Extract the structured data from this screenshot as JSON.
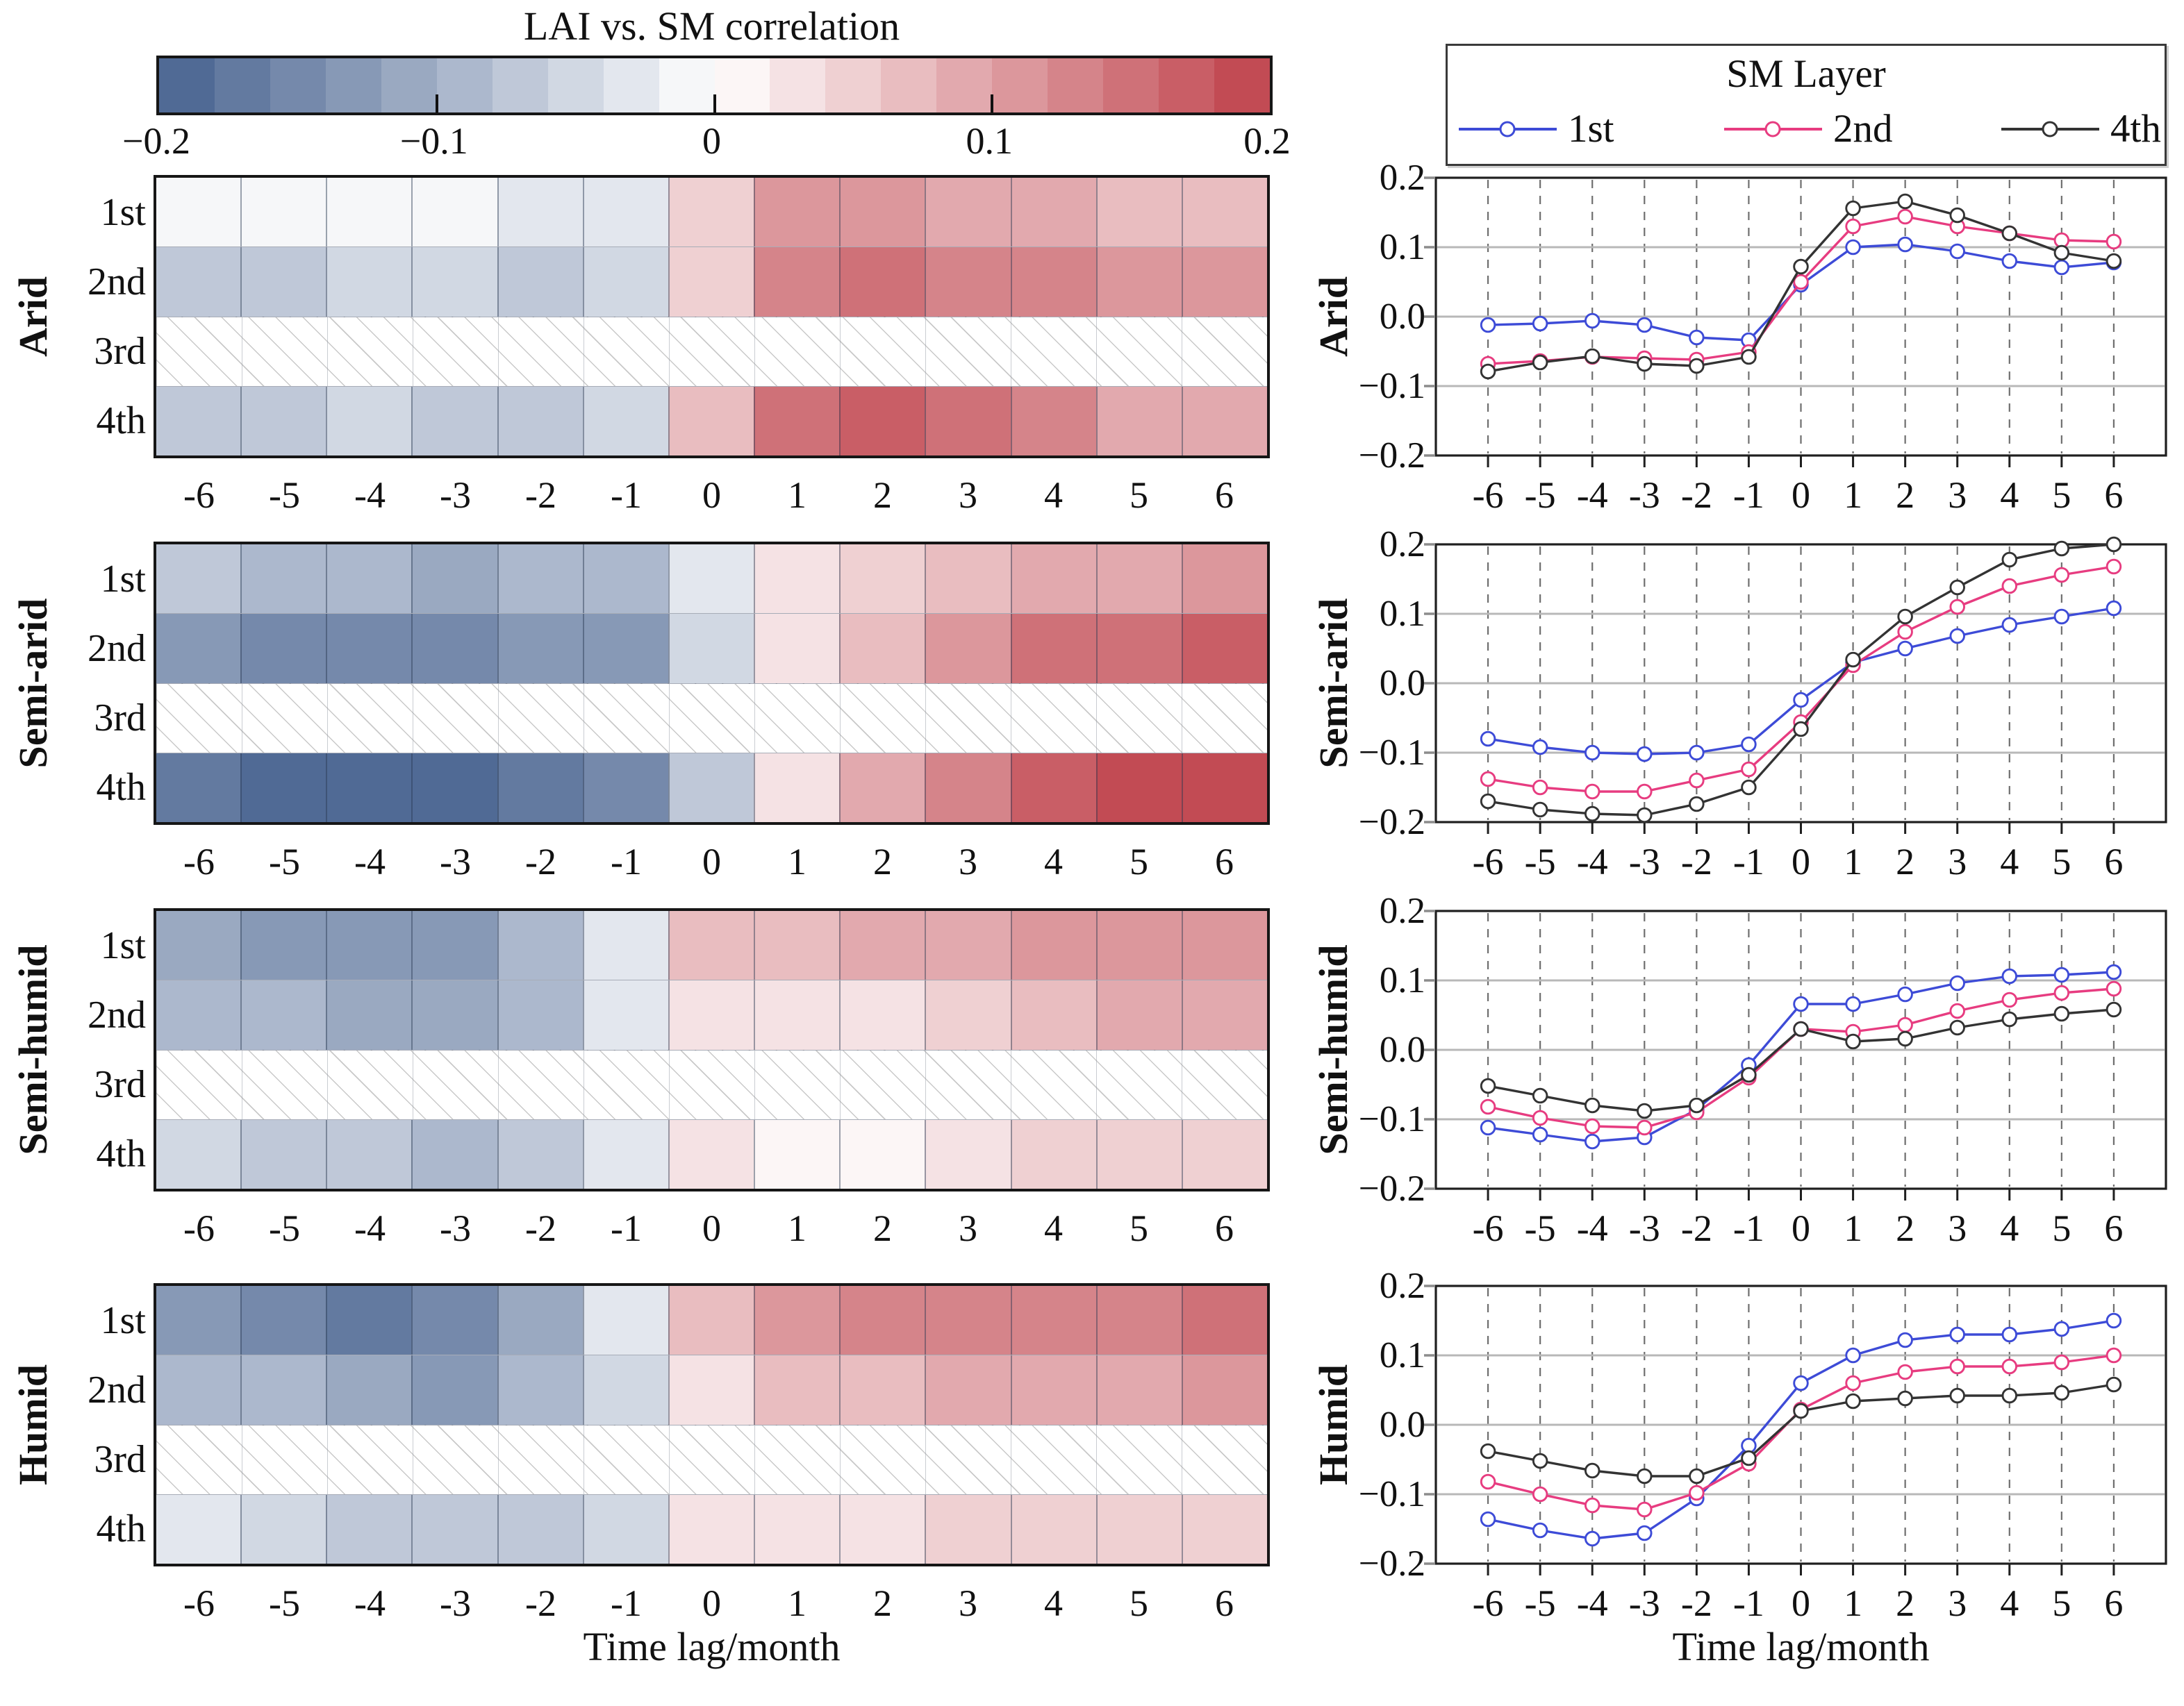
{
  "colorbar": {
    "title": "LAI vs. SM correlation",
    "tick_labels": [
      "−0.2",
      "−0.1",
      "0",
      "0.1",
      "0.2"
    ],
    "vmin": -0.2,
    "vmax": 0.2,
    "n_segments": 20,
    "color_negative_end": "#47628f",
    "color_zero": "#ffffff",
    "color_positive_end": "#bf414b"
  },
  "legend": {
    "title": "SM Layer",
    "entries": [
      {
        "label": "1st",
        "color": "#3d4bd7"
      },
      {
        "label": "2nd",
        "color": "#e73c80"
      },
      {
        "label": "4th",
        "color": "#333333"
      }
    ]
  },
  "axes": {
    "xlabel": "Time lag/month",
    "xtick_labels": [
      "-6",
      "-5",
      "-4",
      "-3",
      "-2",
      "-1",
      "0",
      "1",
      "2",
      "3",
      "4",
      "5",
      "6"
    ],
    "ytick_labels": [
      "0.2",
      "0.1",
      "0.0",
      "−0.1",
      "−0.2"
    ],
    "row_labels": [
      "1st",
      "2nd",
      "3rd",
      "4th"
    ],
    "no_data_note": "3rd soil-moisture layer shown as hatched (no data) in heatmaps"
  },
  "chart_data": [
    {
      "type": "heatmap",
      "region": "Arid",
      "x": [
        -6,
        -5,
        -4,
        -3,
        -2,
        -1,
        0,
        1,
        2,
        3,
        4,
        5,
        6
      ],
      "rows": [
        "1st",
        "2nd",
        "3rd",
        "4th"
      ],
      "vmin": -0.2,
      "vmax": 0.2,
      "values": {
        "1st": [
          -0.012,
          -0.01,
          -0.006,
          -0.012,
          -0.03,
          -0.034,
          0.046,
          0.1,
          0.104,
          0.094,
          0.08,
          0.071,
          0.078
        ],
        "2nd": [
          -0.068,
          -0.064,
          -0.058,
          -0.06,
          -0.062,
          -0.051,
          0.05,
          0.13,
          0.144,
          0.13,
          0.12,
          0.11,
          0.108
        ],
        "3rd": null,
        "4th": [
          -0.079,
          -0.066,
          -0.057,
          -0.068,
          -0.071,
          -0.058,
          0.072,
          0.156,
          0.166,
          0.146,
          0.12,
          0.092,
          0.08
        ]
      }
    },
    {
      "type": "heatmap",
      "region": "Semi-arid",
      "x": [
        -6,
        -5,
        -4,
        -3,
        -2,
        -1,
        0,
        1,
        2,
        3,
        4,
        5,
        6
      ],
      "rows": [
        "1st",
        "2nd",
        "3rd",
        "4th"
      ],
      "vmin": -0.2,
      "vmax": 0.2,
      "values": {
        "1st": [
          -0.08,
          -0.092,
          -0.1,
          -0.102,
          -0.1,
          -0.088,
          -0.024,
          0.03,
          0.05,
          0.068,
          0.084,
          0.096,
          0.108
        ],
        "2nd": [
          -0.138,
          -0.15,
          -0.156,
          -0.156,
          -0.14,
          -0.124,
          -0.056,
          0.026,
          0.074,
          0.11,
          0.14,
          0.156,
          0.168
        ],
        "3rd": null,
        "4th": [
          -0.17,
          -0.182,
          -0.188,
          -0.19,
          -0.174,
          -0.15,
          -0.066,
          0.034,
          0.096,
          0.138,
          0.178,
          0.194,
          0.2
        ]
      }
    },
    {
      "type": "heatmap",
      "region": "Semi-humid",
      "x": [
        -6,
        -5,
        -4,
        -3,
        -2,
        -1,
        0,
        1,
        2,
        3,
        4,
        5,
        6
      ],
      "rows": [
        "1st",
        "2nd",
        "3rd",
        "4th"
      ],
      "vmin": -0.2,
      "vmax": 0.2,
      "values": {
        "1st": [
          -0.112,
          -0.122,
          -0.132,
          -0.126,
          -0.086,
          -0.022,
          0.066,
          0.066,
          0.08,
          0.096,
          0.106,
          0.108,
          0.112
        ],
        "2nd": [
          -0.082,
          -0.098,
          -0.11,
          -0.112,
          -0.09,
          -0.04,
          0.03,
          0.026,
          0.036,
          0.056,
          0.072,
          0.082,
          0.088
        ],
        "3rd": null,
        "4th": [
          -0.052,
          -0.066,
          -0.08,
          -0.088,
          -0.08,
          -0.036,
          0.03,
          0.012,
          0.016,
          0.032,
          0.044,
          0.052,
          0.058
        ]
      }
    },
    {
      "type": "heatmap",
      "region": "Humid",
      "x": [
        -6,
        -5,
        -4,
        -3,
        -2,
        -1,
        0,
        1,
        2,
        3,
        4,
        5,
        6
      ],
      "rows": [
        "1st",
        "2nd",
        "3rd",
        "4th"
      ],
      "vmin": -0.2,
      "vmax": 0.2,
      "values": {
        "1st": [
          -0.136,
          -0.152,
          -0.164,
          -0.156,
          -0.106,
          -0.03,
          0.06,
          0.1,
          0.122,
          0.13,
          0.13,
          0.138,
          0.15
        ],
        "2nd": [
          -0.082,
          -0.1,
          -0.116,
          -0.122,
          -0.098,
          -0.056,
          0.022,
          0.06,
          0.076,
          0.084,
          0.084,
          0.09,
          0.1
        ],
        "3rd": null,
        "4th": [
          -0.038,
          -0.052,
          -0.066,
          -0.074,
          -0.074,
          -0.048,
          0.02,
          0.034,
          0.038,
          0.042,
          0.042,
          0.046,
          0.058
        ]
      }
    },
    {
      "type": "line",
      "region": "Arid",
      "x": [
        -6,
        -5,
        -4,
        -3,
        -2,
        -1,
        0,
        1,
        2,
        3,
        4,
        5,
        6
      ],
      "ylim": [
        -0.2,
        0.2
      ],
      "marker": "open-circle",
      "grid": {
        "horizontal": "solid at -0.1, 0.0, 0.1",
        "vertical": "dashed at each lag"
      },
      "series": [
        {
          "name": "1st",
          "color": "#3d4bd7",
          "values": [
            -0.012,
            -0.01,
            -0.006,
            -0.012,
            -0.03,
            -0.034,
            0.046,
            0.1,
            0.104,
            0.094,
            0.08,
            0.071,
            0.078
          ]
        },
        {
          "name": "2nd",
          "color": "#e73c80",
          "values": [
            -0.068,
            -0.064,
            -0.058,
            -0.06,
            -0.062,
            -0.051,
            0.05,
            0.13,
            0.144,
            0.13,
            0.12,
            0.11,
            0.108
          ]
        },
        {
          "name": "4th",
          "color": "#333333",
          "values": [
            -0.079,
            -0.066,
            -0.057,
            -0.068,
            -0.071,
            -0.058,
            0.072,
            0.156,
            0.166,
            0.146,
            0.12,
            0.092,
            0.08
          ]
        }
      ]
    },
    {
      "type": "line",
      "region": "Semi-arid",
      "x": [
        -6,
        -5,
        -4,
        -3,
        -2,
        -1,
        0,
        1,
        2,
        3,
        4,
        5,
        6
      ],
      "ylim": [
        -0.2,
        0.2
      ],
      "marker": "open-circle",
      "grid": {
        "horizontal": "solid at -0.1, 0.0, 0.1",
        "vertical": "dashed at each lag"
      },
      "series": [
        {
          "name": "1st",
          "color": "#3d4bd7",
          "values": [
            -0.08,
            -0.092,
            -0.1,
            -0.102,
            -0.1,
            -0.088,
            -0.024,
            0.03,
            0.05,
            0.068,
            0.084,
            0.096,
            0.108
          ]
        },
        {
          "name": "2nd",
          "color": "#e73c80",
          "values": [
            -0.138,
            -0.15,
            -0.156,
            -0.156,
            -0.14,
            -0.124,
            -0.056,
            0.026,
            0.074,
            0.11,
            0.14,
            0.156,
            0.168
          ]
        },
        {
          "name": "4th",
          "color": "#333333",
          "values": [
            -0.17,
            -0.182,
            -0.188,
            -0.19,
            -0.174,
            -0.15,
            -0.066,
            0.034,
            0.096,
            0.138,
            0.178,
            0.194,
            0.2
          ]
        }
      ]
    },
    {
      "type": "line",
      "region": "Semi-humid",
      "x": [
        -6,
        -5,
        -4,
        -3,
        -2,
        -1,
        0,
        1,
        2,
        3,
        4,
        5,
        6
      ],
      "ylim": [
        -0.2,
        0.2
      ],
      "marker": "open-circle",
      "grid": {
        "horizontal": "solid at -0.1, 0.0, 0.1",
        "vertical": "dashed at each lag"
      },
      "series": [
        {
          "name": "1st",
          "color": "#3d4bd7",
          "values": [
            -0.112,
            -0.122,
            -0.132,
            -0.126,
            -0.086,
            -0.022,
            0.066,
            0.066,
            0.08,
            0.096,
            0.106,
            0.108,
            0.112
          ]
        },
        {
          "name": "2nd",
          "color": "#e73c80",
          "values": [
            -0.082,
            -0.098,
            -0.11,
            -0.112,
            -0.09,
            -0.04,
            0.03,
            0.026,
            0.036,
            0.056,
            0.072,
            0.082,
            0.088
          ]
        },
        {
          "name": "4th",
          "color": "#333333",
          "values": [
            -0.052,
            -0.066,
            -0.08,
            -0.088,
            -0.08,
            -0.036,
            0.03,
            0.012,
            0.016,
            0.032,
            0.044,
            0.052,
            0.058
          ]
        }
      ]
    },
    {
      "type": "line",
      "region": "Humid",
      "x": [
        -6,
        -5,
        -4,
        -3,
        -2,
        -1,
        0,
        1,
        2,
        3,
        4,
        5,
        6
      ],
      "ylim": [
        -0.2,
        0.2
      ],
      "marker": "open-circle",
      "grid": {
        "horizontal": "solid at -0.1, 0.0, 0.1",
        "vertical": "dashed at each lag"
      },
      "series": [
        {
          "name": "1st",
          "color": "#3d4bd7",
          "values": [
            -0.136,
            -0.152,
            -0.164,
            -0.156,
            -0.106,
            -0.03,
            0.06,
            0.1,
            0.122,
            0.13,
            0.13,
            0.138,
            0.15
          ]
        },
        {
          "name": "2nd",
          "color": "#e73c80",
          "values": [
            -0.082,
            -0.1,
            -0.116,
            -0.122,
            -0.098,
            -0.056,
            0.022,
            0.06,
            0.076,
            0.084,
            0.084,
            0.09,
            0.1
          ]
        },
        {
          "name": "4th",
          "color": "#333333",
          "values": [
            -0.038,
            -0.052,
            -0.066,
            -0.074,
            -0.074,
            -0.048,
            0.02,
            0.034,
            0.038,
            0.042,
            0.042,
            0.046,
            0.058
          ]
        }
      ]
    }
  ]
}
